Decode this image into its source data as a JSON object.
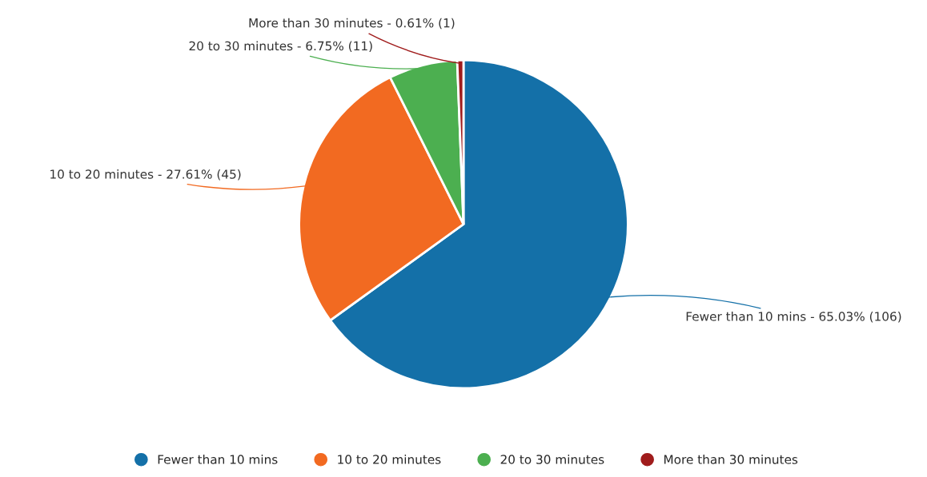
{
  "chart_data": {
    "type": "pie",
    "categories": [
      "Fewer than 10 mins",
      "10 to 20 minutes",
      "20 to 30 minutes",
      "More than 30 minutes"
    ],
    "values": [
      106,
      45,
      11,
      1
    ],
    "value_labels": [
      "Fewer than 10 mins - 65.03% (106)",
      "10 to 20 minutes - 27.61% (45)",
      "20 to 30 minutes - 6.75% (11)",
      "More than 30 minutes - 0.61% (1)"
    ],
    "colors": [
      "#1470a8",
      "#f26a21",
      "#4caf50",
      "#a01c1c"
    ],
    "legend": "bottom"
  }
}
